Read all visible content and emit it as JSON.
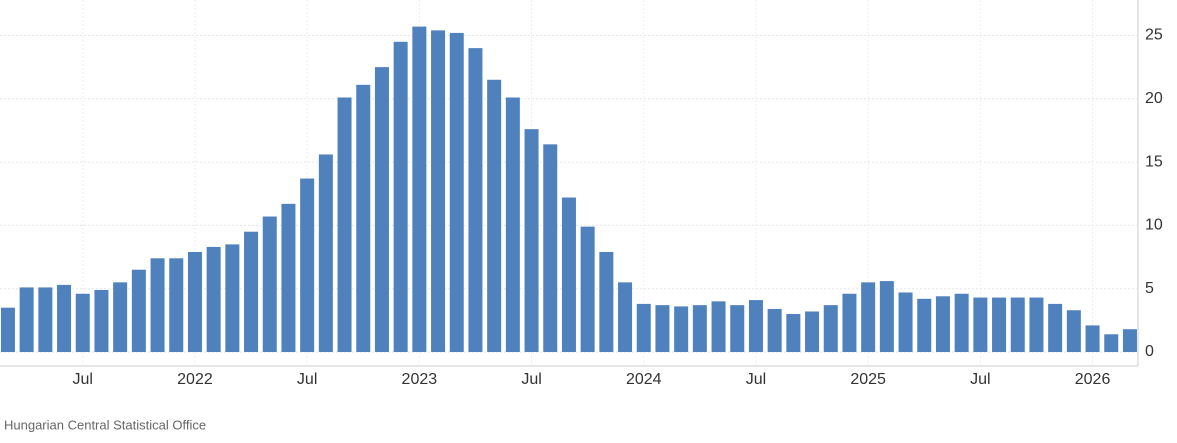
{
  "chart_data": {
    "type": "bar",
    "source": "Hungarian Central Statistical Office",
    "categories": [
      null,
      null,
      null,
      null,
      "Jul",
      null,
      null,
      null,
      null,
      null,
      "2022",
      null,
      null,
      null,
      null,
      null,
      "Jul",
      null,
      null,
      null,
      null,
      null,
      "2023",
      null,
      null,
      null,
      null,
      null,
      "Jul",
      null,
      null,
      null,
      null,
      null,
      "2024",
      null,
      null,
      null,
      null,
      null,
      "Jul",
      null,
      null,
      null,
      null,
      null,
      "2025",
      null,
      null,
      null,
      null,
      null,
      "Jul",
      null,
      null,
      null,
      null,
      null,
      "2026",
      null,
      null
    ],
    "values": [
      3.5,
      5.1,
      5.1,
      5.3,
      4.6,
      4.9,
      5.5,
      6.5,
      7.4,
      7.4,
      7.9,
      8.3,
      8.5,
      9.5,
      10.7,
      11.7,
      13.7,
      15.6,
      20.1,
      21.1,
      22.5,
      24.5,
      25.7,
      25.4,
      25.2,
      24.0,
      21.5,
      20.1,
      17.6,
      16.4,
      12.2,
      9.9,
      7.9,
      5.5,
      3.8,
      3.7,
      3.6,
      3.7,
      4.0,
      3.7,
      4.1,
      3.4,
      3.0,
      3.2,
      3.7,
      4.6,
      5.5,
      5.6,
      4.7,
      4.2,
      4.4,
      4.6,
      4.3,
      4.3,
      4.3,
      4.3,
      3.8,
      3.3,
      2.1,
      1.4,
      1.8
    ],
    "color": "#4f81bd",
    "ylim": [
      0,
      27.8
    ],
    "yticks": [
      0,
      5,
      10,
      15,
      20,
      25
    ],
    "grid": true
  }
}
